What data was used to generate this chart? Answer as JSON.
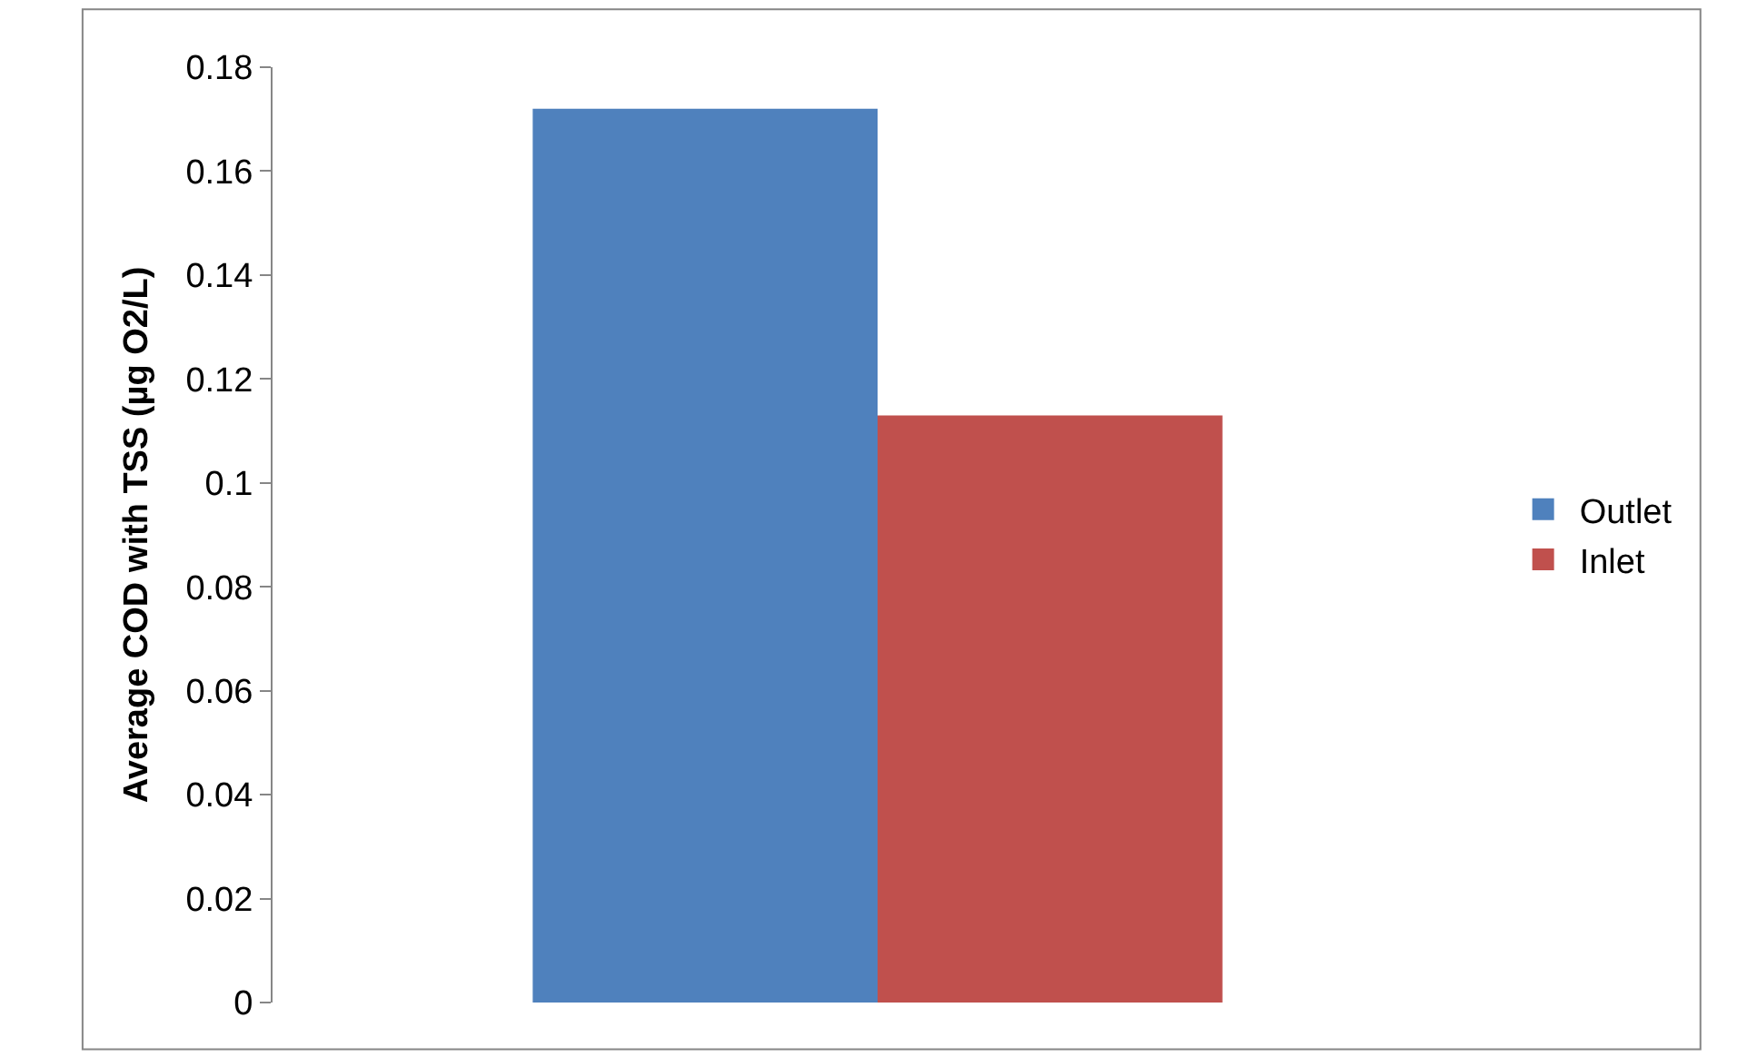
{
  "chart_data": {
    "type": "bar",
    "ylabel": "Average COD with TSS (µg O2/L)",
    "categories": [
      null
    ],
    "series": [
      {
        "name": "Outlet",
        "color": "#4f81bd",
        "values": [
          0.172
        ]
      },
      {
        "name": "Inlet",
        "color": "#c0504d",
        "values": [
          0.113
        ]
      }
    ],
    "ylim": [
      0,
      0.18
    ],
    "yticks": [
      0,
      {
        "value": 0.02,
        "label": "0.02"
      },
      {
        "value": 0.04,
        "label": "0.04"
      },
      {
        "value": 0.06,
        "label": "0.06"
      },
      {
        "value": 0.08,
        "label": "0.08"
      },
      {
        "value": 0.1,
        "label": "0.1"
      },
      {
        "value": 0.12,
        "label": "0.12"
      },
      {
        "value": 0.14,
        "label": "0.14"
      },
      {
        "value": 0.16,
        "label": "0.16"
      },
      {
        "value": 0.18,
        "label": "0.18"
      }
    ],
    "legend": "right"
  }
}
